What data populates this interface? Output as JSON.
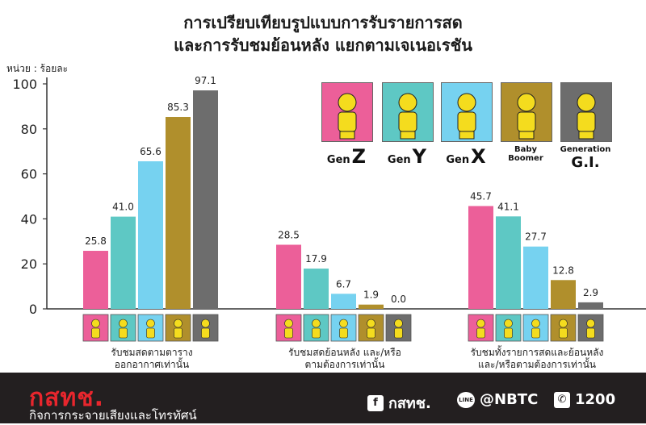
{
  "title_line1": "การเปรียบเทียบรูปแบบการรับรายการสด",
  "title_line2": "และการรับชมย้อนหลัง แยกตามเจเนอเรชัน",
  "unit_label": "หน่วย : ร้อยละ",
  "colors": {
    "genz": "#ec5f99",
    "geny": "#5ec8c4",
    "genx": "#76d2f0",
    "boomer": "#b08f2c",
    "gi": "#6d6d6d"
  },
  "legend": [
    {
      "key": "genz",
      "line1": "Gen",
      "big": "Z"
    },
    {
      "key": "geny",
      "line1": "Gen",
      "big": "Y"
    },
    {
      "key": "genx",
      "line1": "Gen",
      "big": "X"
    },
    {
      "key": "boomer",
      "line1": "Baby",
      "big": "Boomer"
    },
    {
      "key": "gi",
      "line1": "Generation",
      "big": "G.I."
    }
  ],
  "chart_data": {
    "type": "bar",
    "ylim": [
      0,
      100
    ],
    "yticks": [
      "0",
      "20",
      "40",
      "60",
      "80",
      "100"
    ],
    "categories": [
      "รับชมสดตามตาราง ออกอากาศเท่านั้น",
      "รับชมสดย้อนหลัง และ/หรือ ตามต้องการเท่านั้น",
      "รับชมทั้งรายการสดและย้อนหลัง และ/หรือตามต้องการเท่านั้น"
    ],
    "category_lines": [
      [
        "รับชมสดตามตาราง",
        "ออกอากาศเท่านั้น"
      ],
      [
        "รับชมสดย้อนหลัง และ/หรือ",
        "ตามต้องการเท่านั้น"
      ],
      [
        "รับชมทั้งรายการสดและย้อนหลัง",
        "และ/หรือตามต้องการเท่านั้น"
      ]
    ],
    "series": [
      {
        "name": "Gen Z",
        "key": "genz",
        "values": [
          25.8,
          28.5,
          45.7
        ]
      },
      {
        "name": "Gen Y",
        "key": "geny",
        "values": [
          41.0,
          17.9,
          41.1
        ]
      },
      {
        "name": "Gen X",
        "key": "genx",
        "values": [
          65.6,
          6.7,
          27.7
        ]
      },
      {
        "name": "Baby Boomer",
        "key": "boomer",
        "values": [
          85.3,
          1.9,
          12.8
        ]
      },
      {
        "name": "Generation G.I.",
        "key": "gi",
        "values": [
          97.1,
          0.0,
          2.9
        ]
      }
    ]
  },
  "footer": {
    "logo": "กสทช.",
    "org": "กิจการกระจายเสียงและโทรทัศน์",
    "facebook_icon": "f",
    "facebook": "กสทช.",
    "line_icon": "LINE",
    "line": "@NBTC",
    "phone_icon": "✆",
    "phone": "1200"
  }
}
